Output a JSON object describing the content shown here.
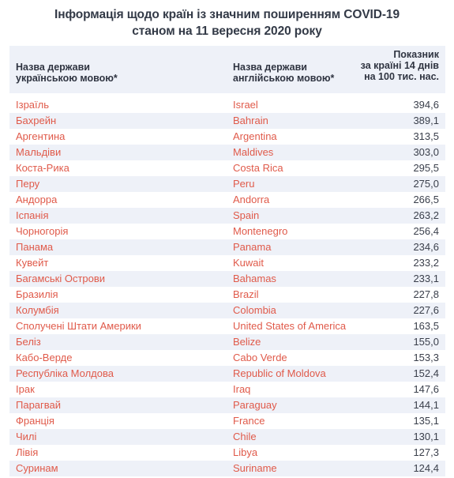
{
  "title_line1": "Інформація щодо країн із значним поширенням COVID-19",
  "title_line2": "станом на 11 вересня 2020 року",
  "headers": {
    "ua": [
      "Назва держави",
      "українською мовою*"
    ],
    "en": [
      "Назва держави",
      "англійською мовою*"
    ],
    "value": [
      "Показник",
      "за країні 14 днів",
      "на 100 тис. нас."
    ]
  },
  "rows": [
    {
      "ua": "Ізраїль",
      "en": "Israel",
      "value": "394,6"
    },
    {
      "ua": "Бахрейн",
      "en": "Bahrain",
      "value": "389,1"
    },
    {
      "ua": "Аргентина",
      "en": "Argentina",
      "value": "313,5"
    },
    {
      "ua": "Мальдіви",
      "en": "Maldives",
      "value": "303,0"
    },
    {
      "ua": "Коста-Рика",
      "en": "Costa Rica",
      "value": "295,5"
    },
    {
      "ua": "Перу",
      "en": "Peru",
      "value": "275,0"
    },
    {
      "ua": "Андорра",
      "en": "Andorra",
      "value": "266,5"
    },
    {
      "ua": "Іспанія",
      "en": "Spain",
      "value": "263,2"
    },
    {
      "ua": "Чорногорія",
      "en": "Montenegro",
      "value": "256,4"
    },
    {
      "ua": "Панама",
      "en": "Panama",
      "value": "234,6"
    },
    {
      "ua": "Кувейт",
      "en": "Kuwait",
      "value": "233,2"
    },
    {
      "ua": "Багамські Острови",
      "en": "Bahamas",
      "value": "233,1"
    },
    {
      "ua": "Бразилія",
      "en": "Brazil",
      "value": "227,8"
    },
    {
      "ua": "Колумбія",
      "en": "Colombia",
      "value": "227,6"
    },
    {
      "ua": "Сполучені Штати Америки",
      "en": "United States of America",
      "value": "163,5"
    },
    {
      "ua": "Беліз",
      "en": "Belize",
      "value": "155,0"
    },
    {
      "ua": "Кабо-Верде",
      "en": "Cabo Verde",
      "value": "153,3"
    },
    {
      "ua": "Республіка Молдова",
      "en": "Republic of Moldova",
      "value": "152,4"
    },
    {
      "ua": "Ірак",
      "en": "Iraq",
      "value": "147,6"
    },
    {
      "ua": "Парагвай",
      "en": "Paraguay",
      "value": "144,1"
    },
    {
      "ua": "Франція",
      "en": "France",
      "value": "135,1"
    },
    {
      "ua": "Чилі",
      "en": "Chile",
      "value": "130,1"
    },
    {
      "ua": "Лівія",
      "en": "Libya",
      "value": "127,3"
    },
    {
      "ua": "Суринам",
      "en": "Suriname",
      "value": "124,4"
    }
  ]
}
